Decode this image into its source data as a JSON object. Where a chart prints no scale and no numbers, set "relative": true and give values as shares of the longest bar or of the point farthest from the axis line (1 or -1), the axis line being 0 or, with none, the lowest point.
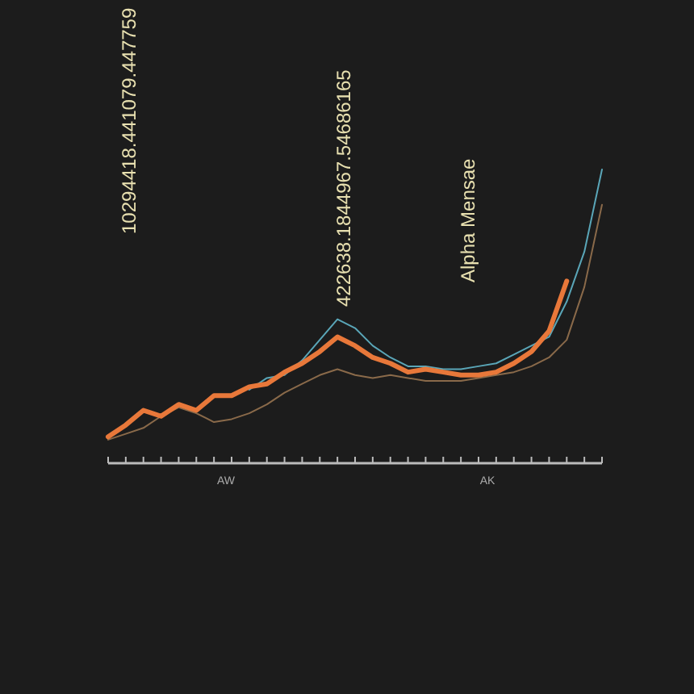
{
  "chart_data": {
    "type": "line",
    "relative": true,
    "categories": [
      null,
      null,
      null,
      null,
      null,
      null,
      null,
      null,
      null,
      null,
      null,
      null,
      null,
      null,
      null,
      null,
      null,
      null,
      null,
      null,
      null,
      null,
      null,
      null,
      null,
      null,
      null,
      null,
      null
    ],
    "series": [
      {
        "color": "#8a6a4a",
        "values": [
          0.08,
          0.1,
          0.12,
          0.16,
          0.19,
          0.17,
          0.14,
          0.15,
          0.17,
          0.2,
          0.24,
          0.27,
          0.3,
          0.32,
          0.3,
          0.29,
          0.3,
          0.29,
          0.28,
          0.28,
          0.28,
          0.29,
          0.3,
          0.31,
          0.33,
          0.36,
          0.42,
          0.6,
          0.88
        ]
      },
      {
        "color": "#5aa6b8",
        "values": [
          null,
          null,
          null,
          null,
          null,
          null,
          null,
          null,
          0.25,
          0.29,
          0.3,
          0.35,
          0.42,
          0.49,
          0.46,
          0.4,
          0.36,
          0.33,
          0.33,
          0.32,
          0.32,
          0.33,
          0.34,
          0.37,
          0.4,
          0.43,
          0.55,
          0.72,
          1
        ]
      },
      {
        "color": "#e8783a",
        "values": [
          0.09,
          0.13,
          0.18,
          0.16,
          0.2,
          0.18,
          0.23,
          0.23,
          0.26,
          0.27,
          0.31,
          0.34,
          0.38,
          0.43,
          0.4,
          0.36,
          0.34,
          0.31,
          0.32,
          0.31,
          0.3,
          0.3,
          0.31,
          0.34,
          0.38,
          0.45,
          0.62,
          null,
          null
        ]
      }
    ],
    "annotations": [
      "10294418.441079.447759",
      "422638.1844967.54686165",
      "Alpha Mensae",
      "AW",
      "AK"
    ],
    "grid": false
  }
}
